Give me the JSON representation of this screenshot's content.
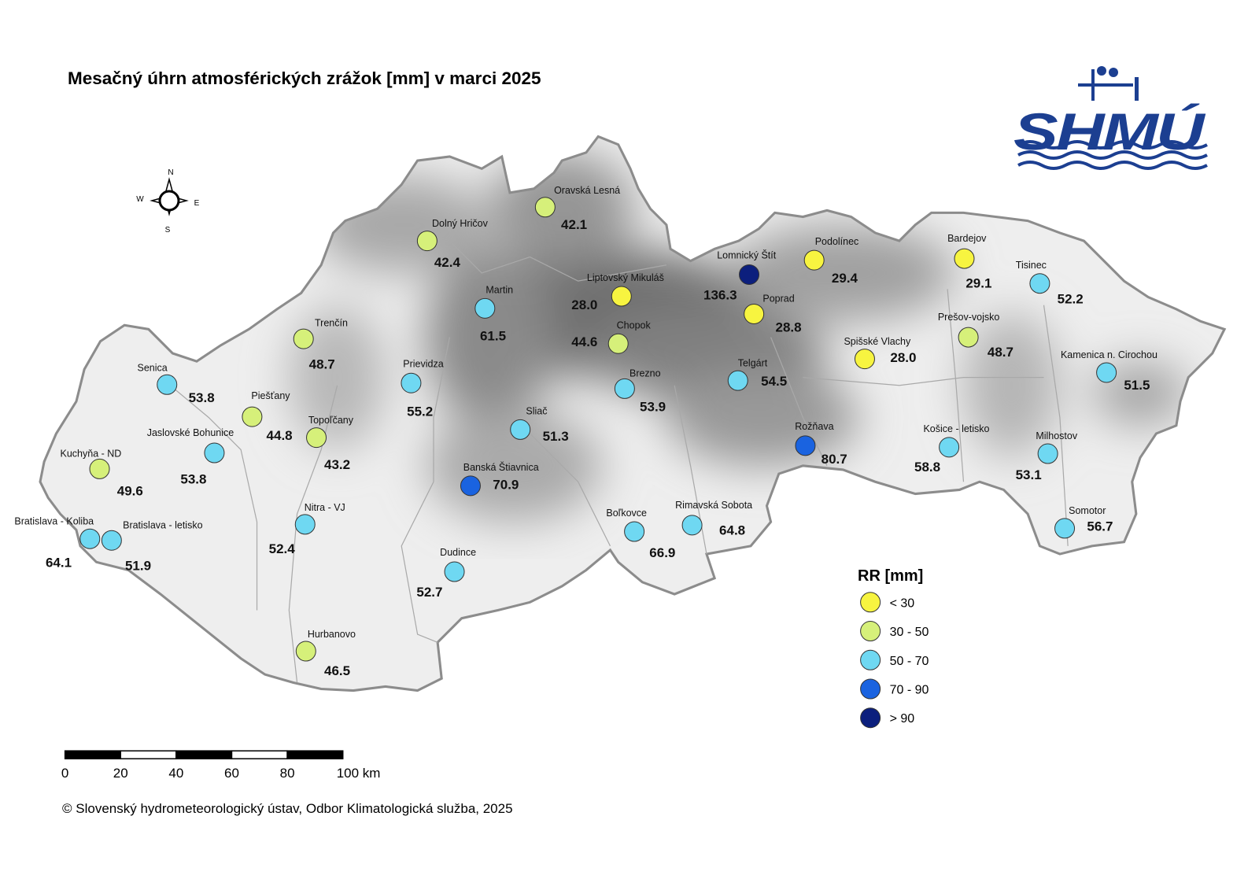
{
  "title": "Mesačný úhrn atmosférických zrážok [mm] v marci 2025",
  "logo": {
    "text": "SHMÚ"
  },
  "compass": {
    "n": "N",
    "e": "E",
    "s": "S",
    "w": "W"
  },
  "stations": [
    {
      "name": "Oravská Lesná",
      "value": 42.1,
      "label": "42.1",
      "color": "#d6f07a"
    },
    {
      "name": "Dolný Hričov",
      "value": 42.4,
      "label": "42.4",
      "color": "#d6f07a"
    },
    {
      "name": "Martin",
      "value": 61.5,
      "label": "61.5",
      "color": "#6fd8f2"
    },
    {
      "name": "Liptovský Mikuláš",
      "value": 28.0,
      "label": "28.0",
      "color": "#f7f440"
    },
    {
      "name": "Chopok",
      "value": 44.6,
      "label": "44.6",
      "color": "#d6f07a"
    },
    {
      "name": "Lomnický Štít",
      "value": 136.3,
      "label": "136.3",
      "color": "#0c1f7d"
    },
    {
      "name": "Podolínec",
      "value": 29.4,
      "label": "29.4",
      "color": "#f7f440"
    },
    {
      "name": "Poprad",
      "value": 28.8,
      "label": "28.8",
      "color": "#f7f440"
    },
    {
      "name": "Bardejov",
      "value": 29.1,
      "label": "29.1",
      "color": "#f7f440"
    },
    {
      "name": "Tisinec",
      "value": 52.2,
      "label": "52.2",
      "color": "#6fd8f2"
    },
    {
      "name": "Prešov-vojsko",
      "value": 48.7,
      "label": "48.7",
      "color": "#d6f07a"
    },
    {
      "name": "Spišské Vlachy",
      "value": 28.0,
      "label": "28.0",
      "color": "#f7f440"
    },
    {
      "name": "Kamenica n. Cirochou",
      "value": 51.5,
      "label": "51.5",
      "color": "#6fd8f2"
    },
    {
      "name": "Telgárt",
      "value": 54.5,
      "label": "54.5",
      "color": "#6fd8f2"
    },
    {
      "name": "Brezno",
      "value": 53.9,
      "label": "53.9",
      "color": "#6fd8f2"
    },
    {
      "name": "Trenčín",
      "value": 48.7,
      "label": "48.7",
      "color": "#d6f07a"
    },
    {
      "name": "Prievidza",
      "value": 55.2,
      "label": "55.2",
      "color": "#6fd8f2"
    },
    {
      "name": "Senica",
      "value": 53.8,
      "label": "53.8",
      "color": "#6fd8f2"
    },
    {
      "name": "Piešťany",
      "value": 44.8,
      "label": "44.8",
      "color": "#d6f07a"
    },
    {
      "name": "Topoľčany",
      "value": 43.2,
      "label": "43.2",
      "color": "#d6f07a"
    },
    {
      "name": "Sliač",
      "value": 51.3,
      "label": "51.3",
      "color": "#6fd8f2"
    },
    {
      "name": "Jaslovské Bohunice",
      "value": 53.8,
      "label": "53.8",
      "color": "#6fd8f2"
    },
    {
      "name": "Kuchyňa - ND",
      "value": 49.6,
      "label": "49.6",
      "color": "#d6f07a"
    },
    {
      "name": "Rožňava",
      "value": 80.7,
      "label": "80.7",
      "color": "#1a63e0"
    },
    {
      "name": "Košice - letisko",
      "value": 58.8,
      "label": "58.8",
      "color": "#6fd8f2"
    },
    {
      "name": "Milhostov",
      "value": 53.1,
      "label": "53.1",
      "color": "#6fd8f2"
    },
    {
      "name": "Banská Štiavnica",
      "value": 70.9,
      "label": "70.9",
      "color": "#1a63e0"
    },
    {
      "name": "Nitra - VJ",
      "value": 52.4,
      "label": "52.4",
      "color": "#6fd8f2"
    },
    {
      "name": "Bratislava - Koliba",
      "value": 64.1,
      "label": "64.1",
      "color": "#6fd8f2"
    },
    {
      "name": "Bratislava - letisko",
      "value": 51.9,
      "label": "51.9",
      "color": "#6fd8f2"
    },
    {
      "name": "Boľkovce",
      "value": 66.9,
      "label": "66.9",
      "color": "#6fd8f2"
    },
    {
      "name": "Rimavská Sobota",
      "value": 64.8,
      "label": "64.8",
      "color": "#6fd8f2"
    },
    {
      "name": "Somotor",
      "value": 56.7,
      "label": "56.7",
      "color": "#6fd8f2"
    },
    {
      "name": "Dudince",
      "value": 52.7,
      "label": "52.7",
      "color": "#6fd8f2"
    },
    {
      "name": "Hurbanovo",
      "value": 46.5,
      "label": "46.5",
      "color": "#d6f07a"
    }
  ],
  "legend": {
    "title": "RR [mm]",
    "items": [
      {
        "label": "< 30",
        "color": "#f7f440"
      },
      {
        "label": "30 - 50",
        "color": "#d6f07a"
      },
      {
        "label": "50 - 70",
        "color": "#6fd8f2"
      },
      {
        "label": "70 - 90",
        "color": "#1a63e0"
      },
      {
        "label": "> 90",
        "color": "#0c1f7d"
      }
    ]
  },
  "scale_bar": {
    "ticks": [
      0,
      20,
      40,
      60,
      80,
      {
        "value": 100,
        "label": "100 km"
      }
    ]
  },
  "copyright": "© Slovenský hydrometeorologický ústav, Odbor Klimatologická služba, 2025"
}
